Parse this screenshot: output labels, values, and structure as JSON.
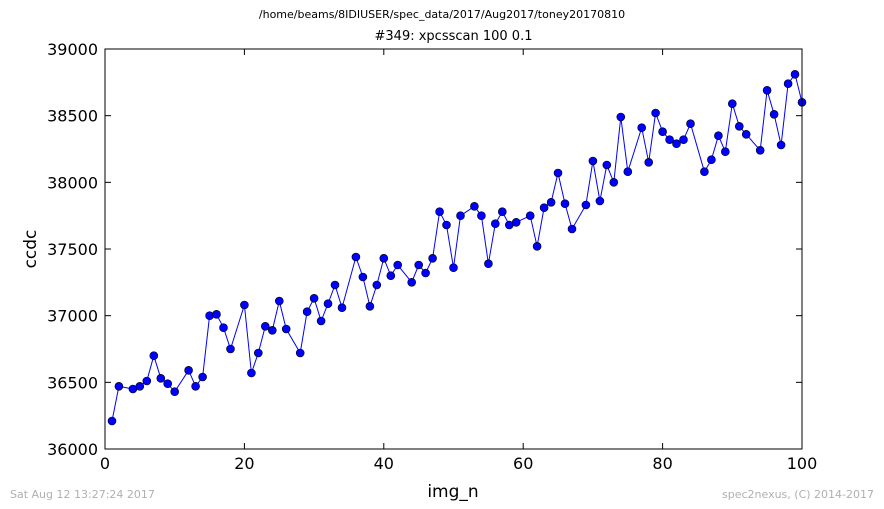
{
  "figure": {
    "suptitle": "/home/beams/8IDIUSER/spec_data/2017/Aug2017/toney20170810",
    "timestamp": "Sat Aug 12 13:27:24 2017",
    "credit": "spec2nexus, (C) 2014-2017"
  },
  "chart_data": {
    "type": "line",
    "title": "#349: xpcsscan 100 0.1",
    "xlabel": "img_n",
    "ylabel": "ccdc",
    "xlim": [
      0,
      100
    ],
    "ylim": [
      36000,
      39000
    ],
    "xticks": [
      0,
      20,
      40,
      60,
      80,
      100
    ],
    "yticks": [
      36000,
      36500,
      37000,
      37500,
      38000,
      38500,
      39000
    ],
    "grid": false,
    "series": [
      {
        "color": "#0000ff",
        "marker": "circle",
        "x": [
          1,
          2,
          4,
          5,
          6,
          7,
          8,
          9,
          10,
          12,
          13,
          14,
          15,
          16,
          17,
          18,
          20,
          21,
          22,
          23,
          24,
          25,
          26,
          28,
          29,
          30,
          31,
          32,
          33,
          34,
          36,
          37,
          38,
          39,
          40,
          41,
          42,
          44,
          45,
          46,
          47,
          48,
          49,
          50,
          51,
          53,
          54,
          55,
          56,
          57,
          58,
          59,
          61,
          62,
          63,
          64,
          65,
          66,
          67,
          69,
          70,
          71,
          72,
          73,
          74,
          75,
          77,
          78,
          79,
          80,
          81,
          82,
          83,
          84,
          86,
          87,
          88,
          89,
          90,
          91,
          92,
          94,
          95,
          96,
          97,
          98,
          99,
          100
        ],
        "y": [
          36210,
          36470,
          36450,
          36470,
          36510,
          36700,
          36530,
          36490,
          36430,
          36590,
          36470,
          36540,
          37000,
          37010,
          36910,
          36750,
          37080,
          36570,
          36720,
          36920,
          36890,
          37110,
          36900,
          36720,
          37030,
          37130,
          36960,
          37090,
          37230,
          37060,
          37440,
          37290,
          37070,
          37230,
          37430,
          37300,
          37380,
          37250,
          37380,
          37320,
          37430,
          37780,
          37680,
          37360,
          37750,
          37820,
          37750,
          37390,
          37690,
          37780,
          37680,
          37700,
          37750,
          37520,
          37810,
          37850,
          38070,
          37840,
          37650,
          37830,
          38160,
          37860,
          38130,
          38000,
          38490,
          38080,
          38410,
          38150,
          38520,
          38380,
          38320,
          38290,
          38320,
          38440,
          38080,
          38170,
          38350,
          38230,
          38590,
          38420,
          38360,
          38240,
          38690,
          38510,
          38280,
          38740,
          38810,
          38600
        ]
      }
    ]
  }
}
